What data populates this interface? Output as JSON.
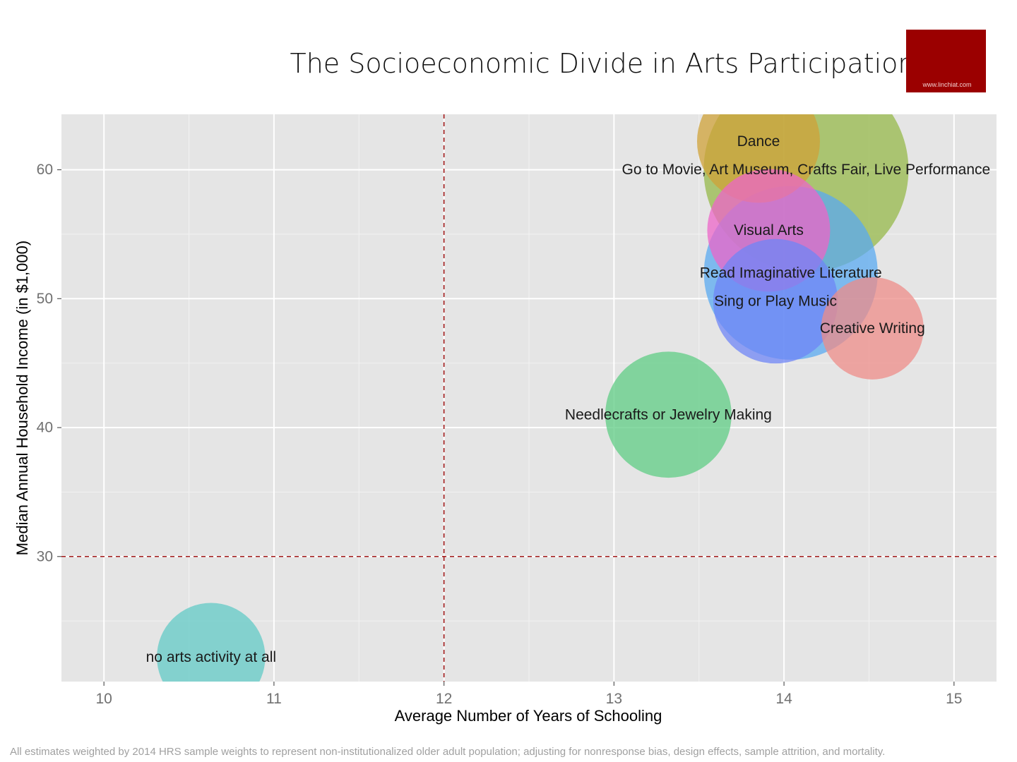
{
  "logo": {
    "text": "www.linchiat.com",
    "color": "#9b0000"
  },
  "footnote": "All estimates weighted by 2014 HRS sample weights to represent non-institutionalized older adult population; adjusting for nonresponse bias, design effects, sample attrition, and mortality.",
  "chart_data": {
    "type": "scatter",
    "title": "The Socioeconomic Divide in Arts Participation",
    "xlabel": "Average Number of Years of Schooling",
    "ylabel": "Median Annual Household Income (in $1,000)",
    "xlim": [
      9.75,
      15.25
    ],
    "ylim": [
      20.3,
      64.3
    ],
    "x_ticks": [
      10,
      11,
      12,
      13,
      14,
      15
    ],
    "y_ticks": [
      30,
      40,
      50,
      60
    ],
    "grid": true,
    "reference_lines": {
      "x": 12,
      "y": 30,
      "color": "#a01818",
      "style": "dashed"
    },
    "points": [
      {
        "label": "Go to Movie, Art Museum, Crafts Fair, Live Performance",
        "x": 14.13,
        "y": 60.0,
        "size": 1.0,
        "color": "#96b84a"
      },
      {
        "label": "Read Imaginative Literature",
        "x": 14.04,
        "y": 52.0,
        "size": 0.72,
        "color": "#5aaaf0"
      },
      {
        "label": "Dance",
        "x": 13.85,
        "y": 62.2,
        "size": 0.36,
        "color": "#cfa238"
      },
      {
        "label": "Visual Arts",
        "x": 13.91,
        "y": 55.3,
        "size": 0.36,
        "color": "#ec66c8"
      },
      {
        "label": "Sing or Play Music",
        "x": 13.95,
        "y": 49.8,
        "size": 0.37,
        "color": "#6f85f6"
      },
      {
        "label": "Creative Writing",
        "x": 14.52,
        "y": 47.7,
        "size": 0.25,
        "color": "#ee8c88"
      },
      {
        "label": "Needlecrafts or Jewelry Making",
        "x": 13.32,
        "y": 41.0,
        "size": 0.38,
        "color": "#5fcc84"
      },
      {
        "label": "no arts activity at all",
        "x": 10.63,
        "y": 22.2,
        "size": 0.28,
        "color": "#62cac6"
      }
    ]
  }
}
